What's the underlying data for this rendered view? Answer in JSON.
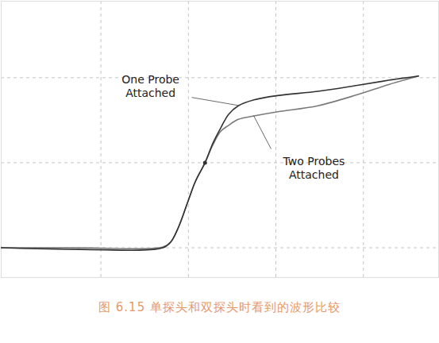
{
  "chart_data": {
    "type": "line",
    "title": "图 6.15  单探头和双探头时看到的波形比较",
    "x": [
      -0.14,
      0.76,
      1.71,
      1.8,
      1.89,
      1.99,
      2.08,
      2.19,
      2.28,
      2.37,
      2.46,
      2.57,
      2.75,
      3.02,
      3.48,
      3.93,
      4.29,
      4.63
    ],
    "series": [
      {
        "name": "One Probe Attached",
        "color": "#333333",
        "values": [
          0.0,
          -0.02,
          0.0,
          0.07,
          0.25,
          0.53,
          0.78,
          1.0,
          1.23,
          1.41,
          1.57,
          1.67,
          1.74,
          1.79,
          1.84,
          1.91,
          1.97,
          2.02
        ]
      },
      {
        "name": "Two Probes Attached",
        "color": "#7a7a7a",
        "values": [
          0.0,
          0.0,
          0.01,
          0.07,
          0.25,
          0.53,
          0.78,
          1.0,
          1.21,
          1.37,
          1.44,
          1.51,
          1.55,
          1.6,
          1.67,
          1.8,
          1.92,
          2.02
        ]
      }
    ],
    "highlight": {
      "x": 2.19,
      "y": 1.0
    },
    "xlim": [
      -0.14,
      4.86
    ],
    "ylim": [
      -0.35,
      2.9
    ],
    "xticks": [
      1,
      2,
      3,
      4
    ],
    "yticks": [
      0,
      1,
      2
    ],
    "grid": true,
    "tick_labels": false
  }
}
